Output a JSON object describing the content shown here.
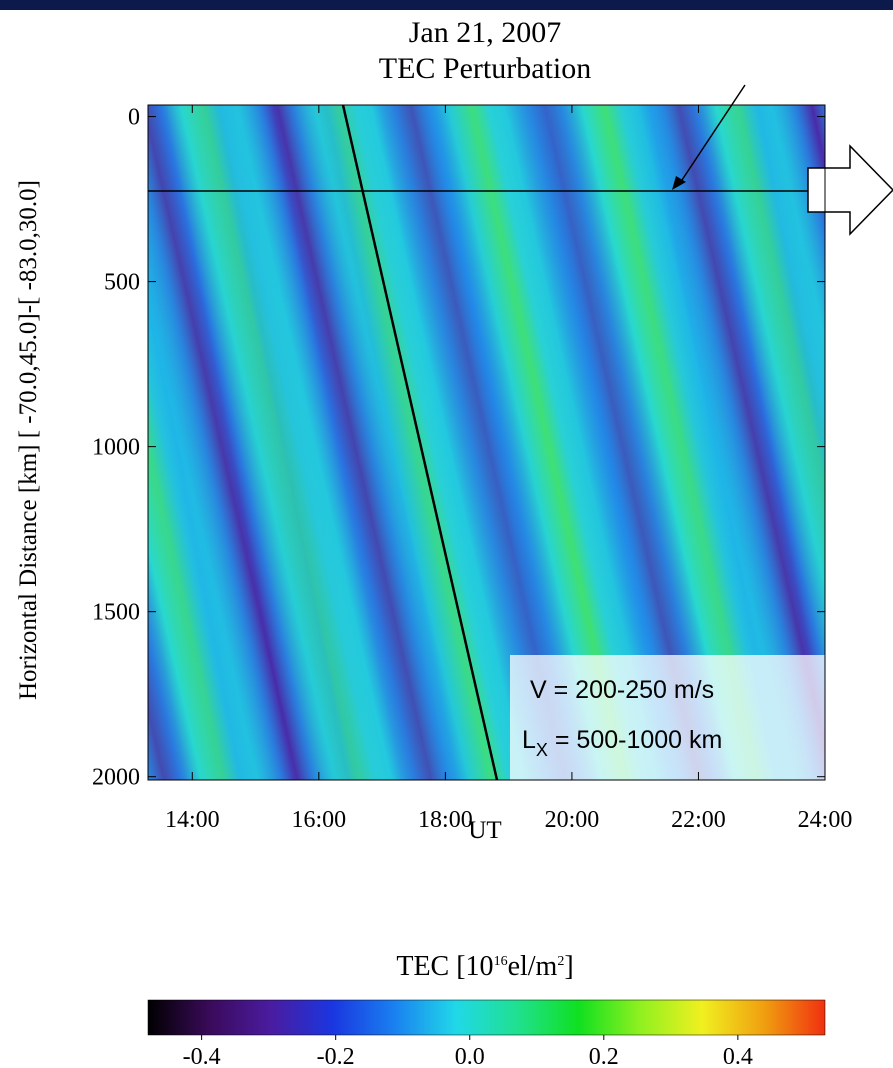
{
  "chart_data": {
    "type": "heatmap",
    "title": [
      "Jan 21, 2007",
      "TEC Perturbation"
    ],
    "x_label": "UT",
    "y_label": "Horizontal Distance [km] [ -70.0,45.0]-[ -83.0,30.0]",
    "xlim": [
      13.3,
      24.0
    ],
    "xticks": [
      {
        "value": 14,
        "label": "14:00"
      },
      {
        "value": 16,
        "label": "16:00"
      },
      {
        "value": 18,
        "label": "18:00"
      },
      {
        "value": 20,
        "label": "20:00"
      },
      {
        "value": 22,
        "label": "22:00"
      },
      {
        "value": 24,
        "label": "24:00"
      }
    ],
    "ylim": [
      -35,
      2010
    ],
    "yticks": [
      0,
      500,
      1000,
      1500,
      2000
    ],
    "y_inverted": true,
    "colorbar": {
      "title_parts": [
        "TEC [10",
        "16",
        "el/m",
        "2",
        "]"
      ],
      "clim": [
        -0.48,
        0.53
      ],
      "ticks": [
        {
          "value": -0.4,
          "label": "-0.4"
        },
        {
          "value": -0.2,
          "label": "-0.2"
        },
        {
          "value": 0.0,
          "label": "0.0"
        },
        {
          "value": 0.2,
          "label": "0.2"
        },
        {
          "value": 0.4,
          "label": "0.4"
        }
      ],
      "colors": [
        "#000000",
        "#3a0a5a",
        "#4a1ca0",
        "#1a36e0",
        "#1a80f0",
        "#20d8e8",
        "#20e090",
        "#10e020",
        "#90f020",
        "#f0f020",
        "#f0a010",
        "#f03010"
      ]
    },
    "annotation": {
      "line1": "V = 200-250 m/s",
      "line2_main": "L",
      "line2_sub": "X",
      "line2_rest": " = 500-1000 km"
    }
  }
}
